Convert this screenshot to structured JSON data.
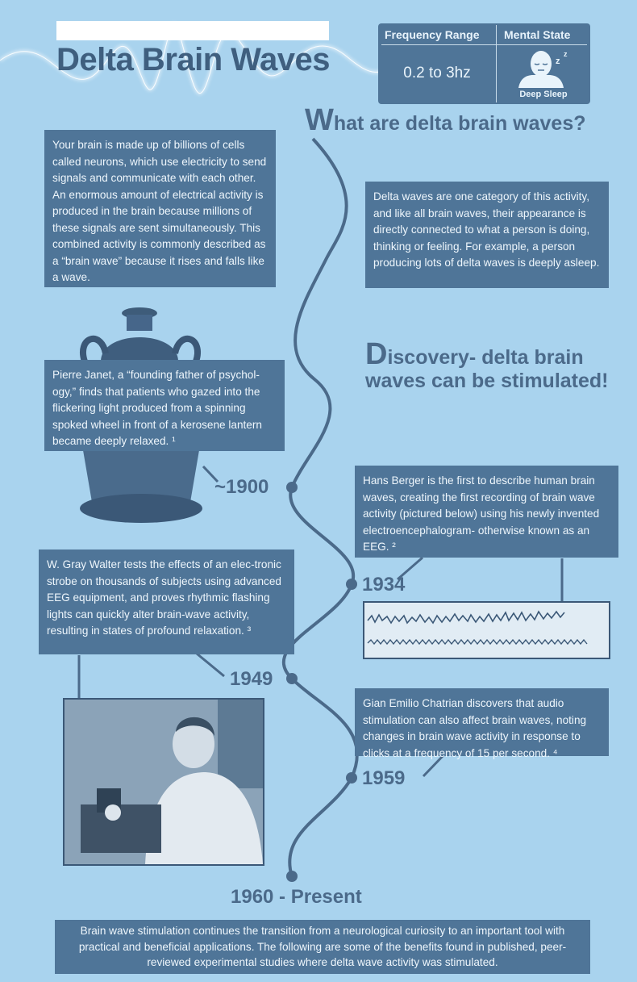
{
  "header": {
    "title": "Delta Brain Waves",
    "freq_table": {
      "col1_header": "Frequency Range",
      "col2_header": "Mental State",
      "frequency": "0.2 to 3hz",
      "state_label": "Deep Sleep",
      "state_icon": "sleeping-face-icon"
    }
  },
  "section1": {
    "heading_initial": "W",
    "heading_rest": "hat are delta brain waves?",
    "left_text": "Your brain is made up of billions of cells called neurons, which use electricity to send signals and communicate with each other. An enormous amount of electrical activity is produced in the brain because millions of these signals are sent simultaneously. This combined activity is commonly described as a “brain wave” because it rises and falls like a wave.",
    "right_text": "Delta waves are one category of this activity, and like all brain waves, their appearance is directly connected to what a person is doing, thinking or feeling. For example, a person producing lots of delta waves is deeply asleep."
  },
  "section2": {
    "heading_initial": "D",
    "heading_line1": "iscovery- delta brain",
    "heading_line2": "waves can be stimulated!"
  },
  "timeline": [
    {
      "year": "~1900",
      "text": "Pierre Janet, a “founding father of psychol-ogy,” finds that patients who gazed into the flickering light produced from a spinning spoked wheel in front of a kerosene lantern became deeply relaxed. ¹"
    },
    {
      "year": "1934",
      "text": "Hans Berger is the first to describe human brain waves, creating the first recording of brain wave activity (pictured below) using his newly invented electroencephalogram- otherwise known as an EEG. ²"
    },
    {
      "year": "1949",
      "text": "W. Gray Walter tests the effects of an elec-tronic strobe on thousands of subjects using advanced EEG equipment, and proves rhythmic flashing lights can quickly alter brain-wave activity, resulting in states of profound relaxation. ³"
    },
    {
      "year": "1959",
      "text": "Gian Emilio Chatrian discovers that audio stimulation can also affect brain waves, noting changes in brain wave activity in response to clicks at a frequency of 15 per second. ⁴"
    },
    {
      "year": "1960 - Present",
      "text": ""
    }
  ],
  "footer": {
    "text": "Brain wave stimulation continues the transition from a neurological curiosity to an important tool with practical and beneficial applications. The following are some of the benefits found in published, peer-reviewed experimental studies where delta wave activity was stimulated."
  },
  "colors": {
    "background": "#a9d3ee",
    "box": "#4f7598",
    "heading": "#4b6a8a"
  }
}
